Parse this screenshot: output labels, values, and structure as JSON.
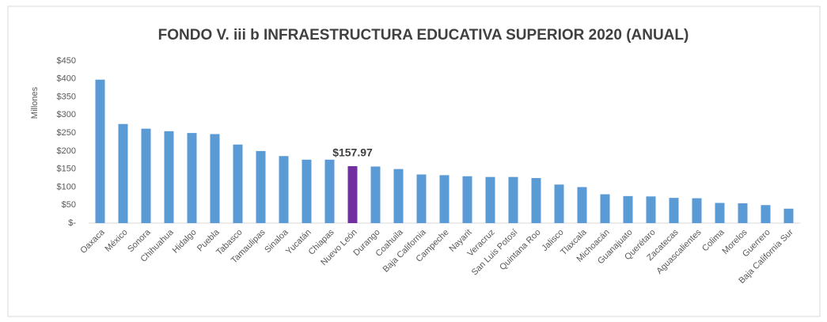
{
  "chart_data": {
    "type": "bar",
    "title": "FONDO V. iii b INFRAESTRUCTURA EDUCATIVA SUPERIOR 2020 (ANUAL)",
    "y_label": "Millones",
    "categories": [
      "Oaxaca",
      "México",
      "Sonora",
      "Chihuahua",
      "Hidalgo",
      "Puebla",
      "Tabasco",
      "Tamaulipas",
      "Sinaloa",
      "Yucatán",
      "Chiapas",
      "Nuevo León",
      "Durango",
      "Coahuila",
      "Baja California",
      "Campeche",
      "Nayarit",
      "Veracruz",
      "San Luis Potosí",
      "Quintana Roo",
      "Jalisco",
      "Tlaxcala",
      "Michoacán",
      "Guanajuato",
      "Querétaro",
      "Zacatecas",
      "Aguascalientes",
      "Colima",
      "Morelos",
      "Guerrero",
      "Baja California Sur"
    ],
    "values": [
      398,
      275,
      262,
      255,
      250,
      247,
      218,
      200,
      186,
      176,
      176,
      157.97,
      157,
      150,
      135,
      133,
      130,
      128,
      128,
      125,
      107,
      100,
      80,
      75,
      74,
      70,
      69,
      56,
      55,
      50,
      40
    ],
    "value_labels": [
      null,
      null,
      null,
      null,
      null,
      null,
      null,
      null,
      null,
      null,
      null,
      "$157.97",
      null,
      null,
      null,
      null,
      null,
      null,
      null,
      null,
      null,
      null,
      null,
      null,
      null,
      null,
      null,
      null,
      null,
      null,
      null
    ],
    "color": "#5b9bd5",
    "highlight_color": "#7030a0",
    "ylim": [
      0,
      450
    ],
    "yticks": [
      {
        "value": 0,
        "label": "$-"
      },
      {
        "value": 50,
        "label": "$50"
      },
      {
        "value": 100,
        "label": "$100"
      },
      {
        "value": 150,
        "label": "$150"
      },
      {
        "value": 200,
        "label": "$200"
      },
      {
        "value": 250,
        "label": "$250"
      },
      {
        "value": 300,
        "label": "$300"
      },
      {
        "value": 350,
        "label": "$350"
      },
      {
        "value": 400,
        "label": "$400"
      },
      {
        "value": 450,
        "label": "$450"
      }
    ],
    "grid": false
  }
}
